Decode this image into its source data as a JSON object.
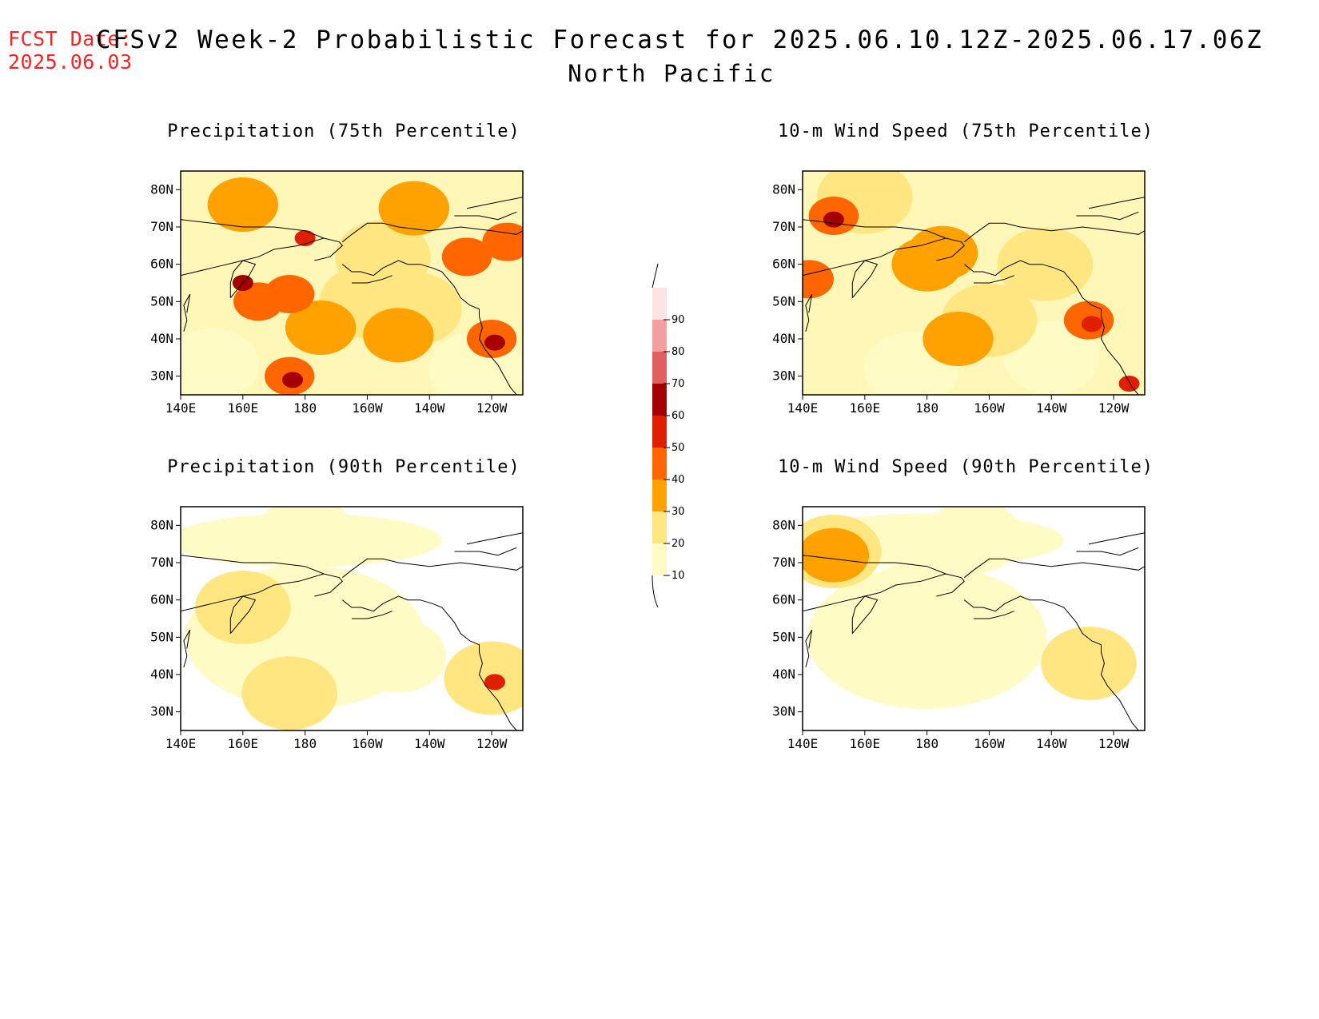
{
  "header": {
    "fcst_label": "FCST Date:",
    "fcst_date": "2025.06.03",
    "title": "CFSv2 Week-2 Probabilistic Forecast for 2025.06.10.12Z-2025.06.17.06Z",
    "subtitle": "North Pacific"
  },
  "map": {
    "lon_labels": [
      "140E",
      "160E",
      "180",
      "160W",
      "140W",
      "120W"
    ],
    "lon_values": [
      140,
      160,
      180,
      200,
      220,
      240
    ],
    "lon_range": [
      140,
      250
    ],
    "lat_labels": [
      "30N",
      "40N",
      "50N",
      "60N",
      "70N",
      "80N"
    ],
    "lat_values": [
      30,
      40,
      50,
      60,
      70,
      80
    ],
    "lat_range": [
      25,
      85
    ]
  },
  "colorbar": {
    "levels": [
      10,
      20,
      30,
      40,
      50,
      60,
      70,
      80,
      90
    ],
    "labels": [
      "10",
      "20",
      "30",
      "40",
      "50",
      "60",
      "70",
      "80",
      "90"
    ],
    "colors": [
      "#fffbc4",
      "#ffe680",
      "#ffa200",
      "#ff6600",
      "#e01e00",
      "#a50000",
      "#e06060",
      "#f5a0a0",
      "#fde4e4"
    ]
  },
  "chart_data": [
    {
      "type": "heatmap",
      "title": "Precipitation (75th Percentile)",
      "units": "probability (%)",
      "regions": [
        {
          "lon": 150,
          "lat": 33,
          "value": 10
        },
        {
          "lon": 175,
          "lat": 30,
          "value": 40
        },
        {
          "lon": 176,
          "lat": 29,
          "value": 60
        },
        {
          "lon": 185,
          "lat": 43,
          "value": 30
        },
        {
          "lon": 165,
          "lat": 50,
          "value": 40
        },
        {
          "lon": 160,
          "lat": 55,
          "value": 60
        },
        {
          "lon": 175,
          "lat": 52,
          "value": 40
        },
        {
          "lon": 210,
          "lat": 41,
          "value": 30
        },
        {
          "lon": 200,
          "lat": 50,
          "value": 20
        },
        {
          "lon": 215,
          "lat": 48,
          "value": 20
        },
        {
          "lon": 235,
          "lat": 32,
          "value": 10
        },
        {
          "lon": 240,
          "lat": 40,
          "value": 40
        },
        {
          "lon": 241,
          "lat": 39,
          "value": 60
        },
        {
          "lon": 160,
          "lat": 76,
          "value": 30
        },
        {
          "lon": 180,
          "lat": 67,
          "value": 50
        },
        {
          "lon": 215,
          "lat": 75,
          "value": 30
        },
        {
          "lon": 232,
          "lat": 62,
          "value": 40
        },
        {
          "lon": 245,
          "lat": 66,
          "value": 40
        },
        {
          "lon": 205,
          "lat": 62,
          "value": 20
        }
      ]
    },
    {
      "type": "heatmap",
      "title": "10-m Wind Speed (75th Percentile)",
      "units": "probability (%)",
      "regions": [
        {
          "lon": 150,
          "lat": 73,
          "value": 40
        },
        {
          "lon": 150,
          "lat": 72,
          "value": 60
        },
        {
          "lon": 160,
          "lat": 78,
          "value": 20
        },
        {
          "lon": 180,
          "lat": 60,
          "value": 30
        },
        {
          "lon": 185,
          "lat": 63,
          "value": 30
        },
        {
          "lon": 190,
          "lat": 40,
          "value": 30
        },
        {
          "lon": 200,
          "lat": 45,
          "value": 20
        },
        {
          "lon": 175,
          "lat": 32,
          "value": 10
        },
        {
          "lon": 220,
          "lat": 35,
          "value": 10
        },
        {
          "lon": 232,
          "lat": 45,
          "value": 40
        },
        {
          "lon": 233,
          "lat": 44,
          "value": 50
        },
        {
          "lon": 245,
          "lat": 28,
          "value": 50
        },
        {
          "lon": 142,
          "lat": 56,
          "value": 40
        },
        {
          "lon": 218,
          "lat": 60,
          "value": 20
        }
      ]
    },
    {
      "type": "heatmap",
      "title": "Precipitation (90th Percentile)",
      "units": "probability (%)",
      "regions": [
        {
          "lon": 185,
          "lat": 50,
          "value": 10
        },
        {
          "lon": 180,
          "lat": 78,
          "value": 10
        },
        {
          "lon": 175,
          "lat": 35,
          "value": 20
        },
        {
          "lon": 160,
          "lat": 58,
          "value": 20
        },
        {
          "lon": 210,
          "lat": 45,
          "value": 10
        },
        {
          "lon": 240,
          "lat": 39,
          "value": 20
        },
        {
          "lon": 241,
          "lat": 38,
          "value": 50
        }
      ]
    },
    {
      "type": "heatmap",
      "title": "10-m Wind Speed (90th Percentile)",
      "units": "probability (%)",
      "regions": [
        {
          "lon": 150,
          "lat": 73,
          "value": 20
        },
        {
          "lon": 150,
          "lat": 72,
          "value": 30
        },
        {
          "lon": 190,
          "lat": 48,
          "value": 10
        },
        {
          "lon": 175,
          "lat": 60,
          "value": 10
        },
        {
          "lon": 232,
          "lat": 43,
          "value": 20
        },
        {
          "lon": 195,
          "lat": 77,
          "value": 10
        }
      ]
    }
  ]
}
